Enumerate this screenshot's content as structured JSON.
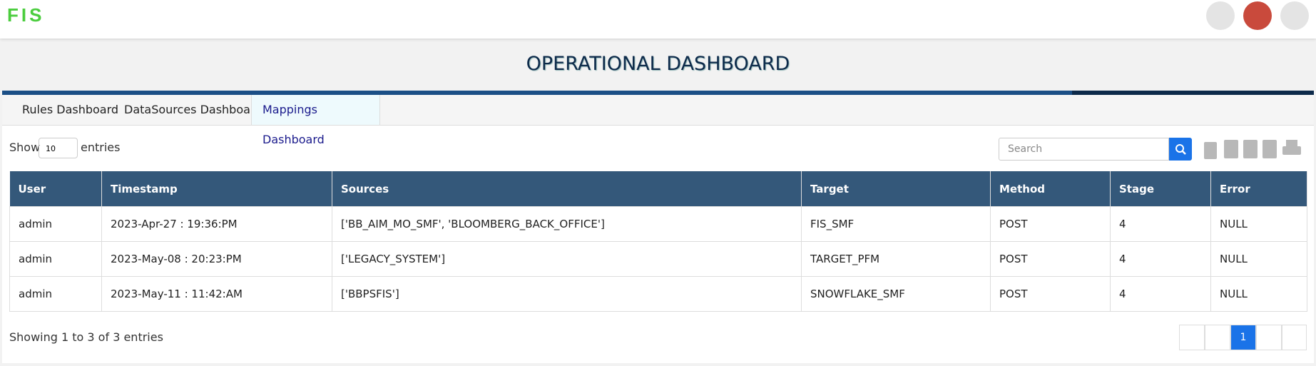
{
  "header": {
    "logo": "FIS"
  },
  "title": "OPERATIONAL DASHBOARD",
  "tabs": [
    "Rules Dashboard",
    "DataSources Dashboard",
    "Mappings Dashboard"
  ],
  "controls": {
    "show_label": "Show",
    "page_length": "10",
    "entries_label": "entries",
    "search_placeholder": "Search"
  },
  "table": {
    "columns": [
      "User",
      "Timestamp",
      "Sources",
      "Target",
      "Method",
      "Stage",
      "Error"
    ],
    "rows": [
      [
        "admin",
        "2023-Apr-27 : 19:36:PM",
        "['BB_AIM_MO_SMF', 'BLOOMBERG_BACK_OFFICE']",
        "FIS_SMF",
        "POST",
        "4",
        "NULL"
      ],
      [
        "admin",
        "2023-May-08 : 20:23:PM",
        "['LEGACY_SYSTEM']",
        "TARGET_PFM",
        "POST",
        "4",
        "NULL"
      ],
      [
        "admin",
        "2023-May-11 : 11:42:AM",
        "['BBPSFIS']",
        "SNOWFLAKE_SMF",
        "POST",
        "4",
        "NULL"
      ]
    ]
  },
  "info": "Showing 1 to 3 of 3 entries",
  "pagination": {
    "current": "1"
  }
}
